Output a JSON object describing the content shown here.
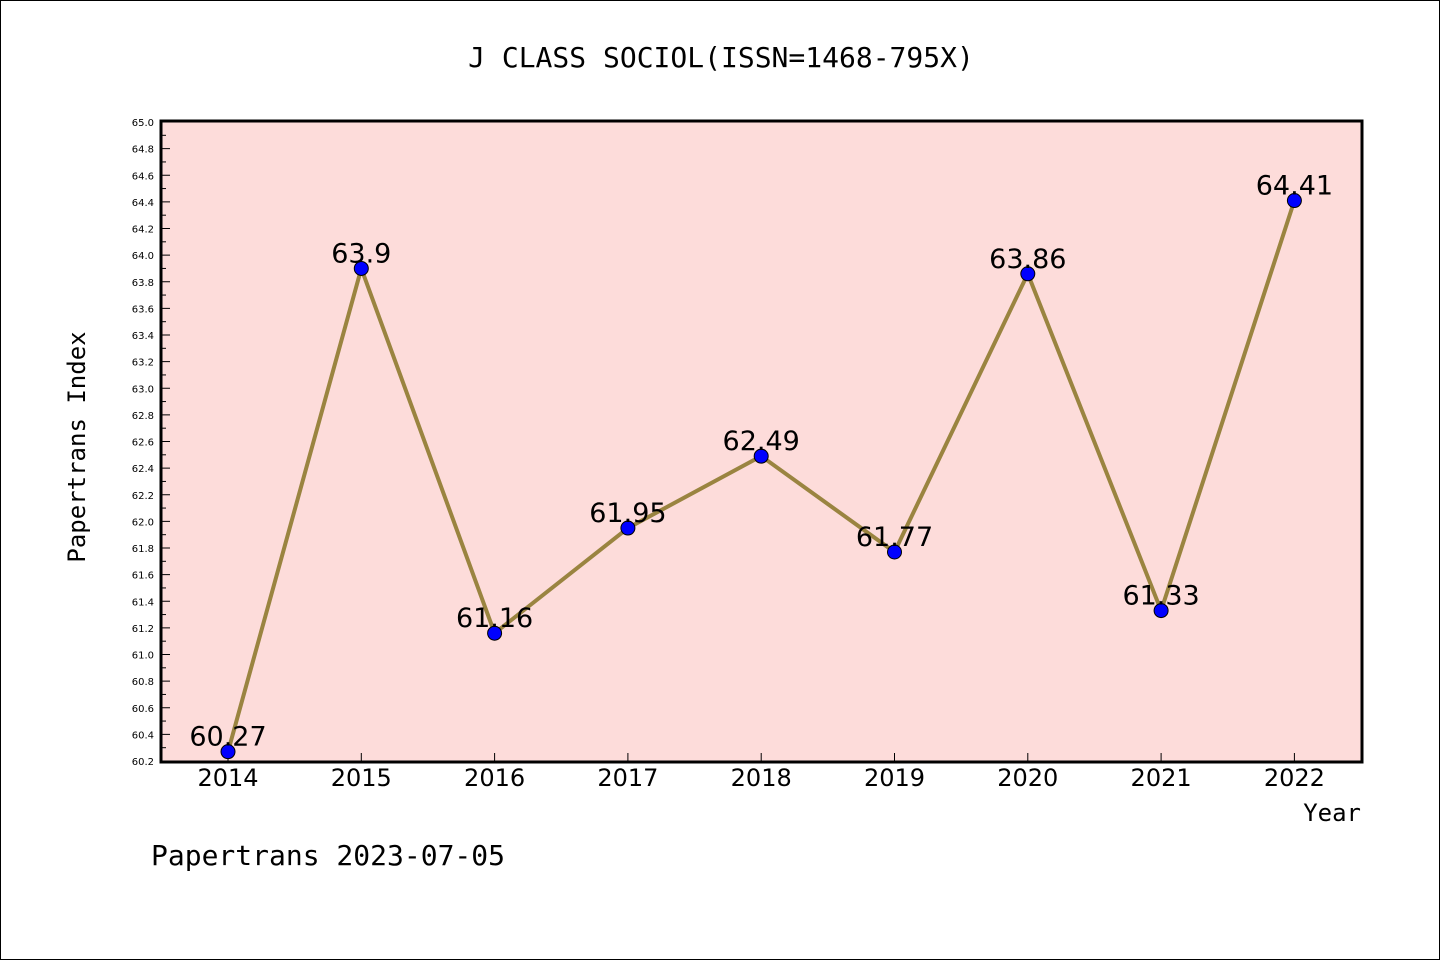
{
  "chart_data": {
    "type": "line",
    "title": "J CLASS SOCIOL(ISSN=1468-795X)",
    "xlabel": "Year",
    "ylabel": "Papertrans Index",
    "categories": [
      "2014",
      "2015",
      "2016",
      "2017",
      "2018",
      "2019",
      "2020",
      "2021",
      "2022"
    ],
    "series": [
      {
        "values": [
          60.27,
          63.9,
          61.16,
          61.95,
          62.49,
          61.77,
          63.86,
          61.33,
          64.41
        ],
        "data_labels": [
          "60.27",
          "63.9",
          "61.16",
          "61.95",
          "62.49",
          "61.77",
          "63.86",
          "61.33",
          "64.41"
        ],
        "line_color": "#9a8440",
        "marker_color": "#0000ff"
      }
    ],
    "ylim": [
      60.2,
      65.0
    ],
    "yticks": [
      "60.2",
      "60.4",
      "60.6",
      "60.8",
      "61.0",
      "61.2",
      "61.4",
      "61.6",
      "61.8",
      "62.0",
      "62.2",
      "62.4",
      "62.6",
      "62.8",
      "63.0",
      "63.2",
      "63.4",
      "63.6",
      "63.8",
      "64.0",
      "64.2",
      "64.4",
      "64.6",
      "64.8",
      "65.0"
    ],
    "plot_background": "#fddcda",
    "grid": false,
    "legend": "none"
  },
  "footer": "Papertrans 2023-07-05"
}
